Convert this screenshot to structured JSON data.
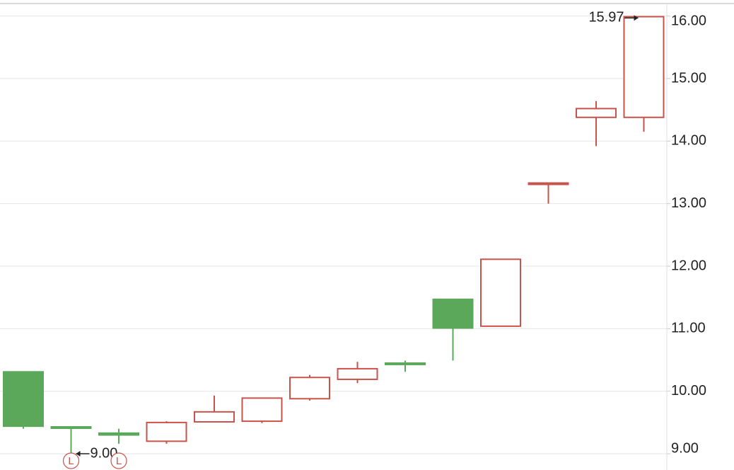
{
  "chart_data": {
    "type": "candlestick",
    "open": [
      10.31,
      9.43,
      9.33,
      9.2,
      9.51,
      9.52,
      9.88,
      10.19,
      10.45,
      11.47,
      11.04,
      13.31,
      14.38,
      14.38
    ],
    "high": [
      10.31,
      9.43,
      9.4,
      9.52,
      9.93,
      9.89,
      10.26,
      10.47,
      10.49,
      11.47,
      12.11,
      13.33,
      14.64,
      15.97
    ],
    "low": [
      9.4,
      9.0,
      9.16,
      9.16,
      9.51,
      9.49,
      9.85,
      10.13,
      10.31,
      10.49,
      11.04,
      13.0,
      13.92,
      14.15
    ],
    "close": [
      9.44,
      9.42,
      9.3,
      9.5,
      9.67,
      9.89,
      10.22,
      10.36,
      10.43,
      11.01,
      12.11,
      13.33,
      14.52,
      15.99
    ],
    "high_labels": [
      null,
      null,
      null,
      null,
      null,
      null,
      null,
      null,
      null,
      null,
      null,
      null,
      null,
      "15.97"
    ],
    "low_labels": [
      null,
      "9.00",
      null,
      null,
      null,
      null,
      null,
      null,
      null,
      null,
      null,
      null,
      null,
      null
    ],
    "low_markers": [
      null,
      "L",
      "L",
      null,
      null,
      null,
      null,
      null,
      null,
      null,
      null,
      null,
      null,
      null
    ],
    "up_color": "#c8534b",
    "down_color": "#5ba85b",
    "ylim": [
      8.74,
      16.2
    ],
    "yticks": [
      {
        "value": 9,
        "label": "9.00"
      },
      {
        "value": 10,
        "label": "10.00"
      },
      {
        "value": 11,
        "label": "11.00"
      },
      {
        "value": 12,
        "label": "12.00"
      },
      {
        "value": 13,
        "label": "13.00"
      },
      {
        "value": 14,
        "label": "14.00"
      },
      {
        "value": 15,
        "label": "15.00"
      },
      {
        "value": 16,
        "label": "16.00"
      }
    ],
    "grid": true
  }
}
